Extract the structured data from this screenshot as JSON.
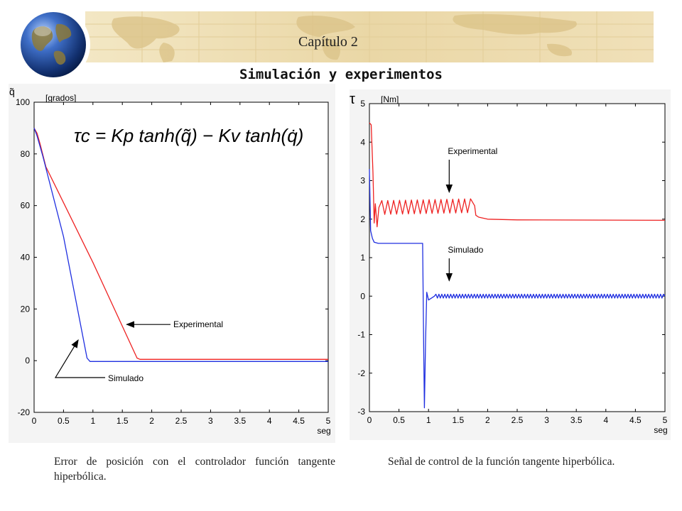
{
  "header": {
    "chapter": "Capítulo 2",
    "title": "Simulación y experimentos"
  },
  "colors": {
    "experimental": "#ee2222",
    "simulated": "#1f2fe0",
    "banner": "#eddcae"
  },
  "icons": [
    "globe-icon",
    "world-map-banner"
  ],
  "chart_data": [
    {
      "type": "line",
      "symbol": "q̃",
      "unit": "[grados]",
      "xlabel": "seg",
      "xlim": [
        0,
        5
      ],
      "ylim": [
        -20,
        100
      ],
      "xticks": [
        "0",
        "0.5",
        "1",
        "1.5",
        "2",
        "2.5",
        "3",
        "3.5",
        "4",
        "4.5",
        "5"
      ],
      "yticks": [
        "100",
        "80",
        "60",
        "40",
        "20",
        "0",
        "-20"
      ],
      "ytick_values": [
        100,
        80,
        60,
        40,
        20,
        0,
        -20
      ],
      "xtick_values": [
        0,
        0.5,
        1,
        1.5,
        2,
        2.5,
        3,
        3.5,
        4,
        4.5,
        5
      ],
      "equation": "τc = Kp tanh(q̃) − Kv tanh(q̇)",
      "series": [
        {
          "name": "Experimental",
          "color": "#ee2222",
          "x": [
            0,
            0.05,
            0.1,
            0.2,
            1.0,
            1.75,
            1.8,
            5
          ],
          "y": [
            90,
            88,
            84,
            75,
            38,
            1,
            0.5,
            0.5
          ]
        },
        {
          "name": "Simulado",
          "color": "#1f2fe0",
          "x": [
            0,
            0.05,
            0.15,
            0.5,
            0.9,
            0.95,
            5
          ],
          "y": [
            90,
            87,
            79,
            48,
            1,
            -0.3,
            -0.3
          ]
        }
      ],
      "annotations": [
        {
          "text": "Experimental",
          "arrow_to": [
            1.55,
            14
          ]
        },
        {
          "text": "Simulado",
          "arrow_to": [
            0.75,
            8
          ]
        }
      ],
      "caption": "Error de posición con el controlador función tangente hiperbólica."
    },
    {
      "type": "line",
      "symbol": "τ",
      "unit": "[Nm]",
      "xlabel": "seg",
      "xlim": [
        0,
        5
      ],
      "ylim": [
        -3,
        5
      ],
      "xticks": [
        "0",
        "0.5",
        "1",
        "1.5",
        "2",
        "2.5",
        "3",
        "3.5",
        "4",
        "4.5",
        "5"
      ],
      "yticks": [
        "5",
        "4",
        "3",
        "2",
        "1",
        "0",
        "-1",
        "-2",
        "-3"
      ],
      "ytick_values": [
        5,
        4,
        3,
        2,
        1,
        0,
        -1,
        -2,
        -3
      ],
      "xtick_values": [
        0,
        0.5,
        1,
        1.5,
        2,
        2.5,
        3,
        3.5,
        4,
        4.5,
        5
      ],
      "series": [
        {
          "name": "Experimental",
          "color": "#ee2222",
          "x": [
            0,
            0.03,
            0.06,
            0.08,
            0.1,
            0.13,
            0.16,
            1.78,
            1.8,
            1.85,
            2.0,
            2.5,
            5
          ],
          "y": [
            4.5,
            4.45,
            3.2,
            1.9,
            2.4,
            1.8,
            2.3,
            2.35,
            2.1,
            2.05,
            2.0,
            1.98,
            1.97
          ],
          "oscillation": {
            "from": 0.16,
            "to": 1.78,
            "period": 0.1,
            "amplitude": 0.18
          }
        },
        {
          "name": "Simulado",
          "color": "#1f2fe0",
          "x": [
            0,
            0.02,
            0.05,
            0.08,
            0.15,
            0.9,
            0.92,
            0.93,
            0.95,
            0.97,
            1.0,
            1.1,
            5
          ],
          "y": [
            3.3,
            1.7,
            1.5,
            1.4,
            1.37,
            1.37,
            -1.5,
            -2.9,
            -1.2,
            0.1,
            -0.1,
            0.0,
            0.0
          ],
          "oscillation": {
            "from": 1.1,
            "to": 5,
            "period": 0.05,
            "amplitude": 0.05
          }
        }
      ],
      "annotations": [
        {
          "text": "Experimental",
          "arrow_to": [
            1.35,
            2.7
          ]
        },
        {
          "text": "Simulado",
          "arrow_to": [
            1.35,
            0.4
          ]
        }
      ],
      "caption": "Señal de control de la función tangente hiperbólica."
    }
  ]
}
